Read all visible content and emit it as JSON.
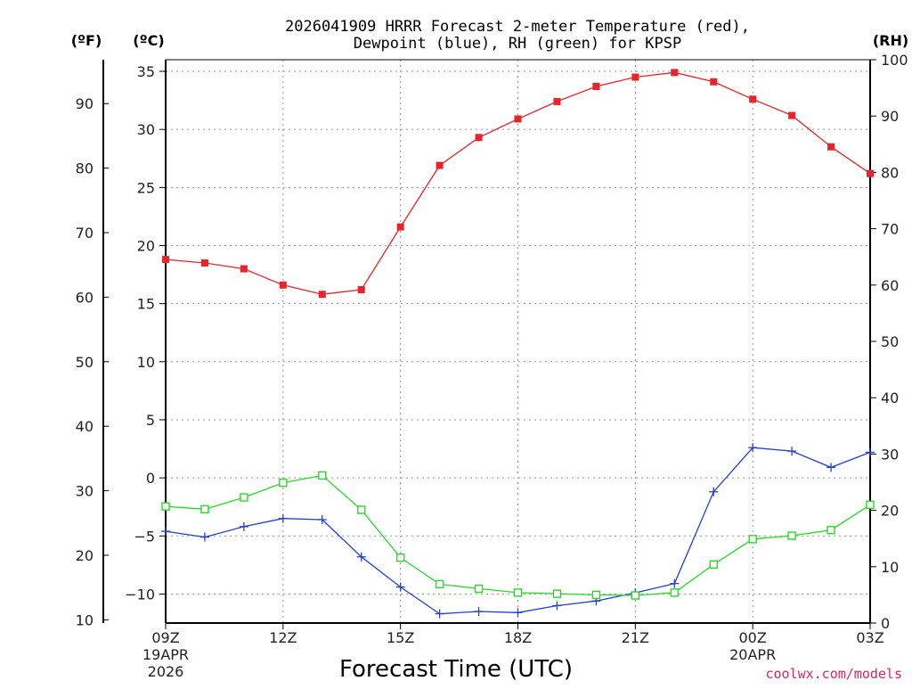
{
  "chart_data": {
    "type": "line",
    "title_line1": "2026041909 HRRR Forecast 2-meter Temperature (red),",
    "title_line2": "Dewpoint (blue), RH (green) for KPSP",
    "xlabel": "Forecast Time (UTC)",
    "credit": "coolwx.com/models",
    "unit_labels": {
      "fahrenheit": "(ºF)",
      "celsius": "(ºC)",
      "rh": "(RH)"
    },
    "x_hours": [
      0,
      1,
      2,
      3,
      4,
      5,
      6,
      7,
      8,
      9,
      10,
      11,
      12,
      13,
      14,
      15,
      16,
      17,
      18
    ],
    "x_ticks": [
      {
        "hour": 0,
        "label": "09Z",
        "line2": "19APR",
        "line3": "2026"
      },
      {
        "hour": 3,
        "label": "12Z",
        "line2": "",
        "line3": ""
      },
      {
        "hour": 6,
        "label": "15Z",
        "line2": "",
        "line3": ""
      },
      {
        "hour": 9,
        "label": "18Z",
        "line2": "",
        "line3": ""
      },
      {
        "hour": 12,
        "label": "21Z",
        "line2": "",
        "line3": ""
      },
      {
        "hour": 15,
        "label": "00Z",
        "line2": "20APR",
        "line3": ""
      },
      {
        "hour": 18,
        "label": "03Z",
        "line2": "",
        "line3": ""
      }
    ],
    "celsius_axis": {
      "min": -12.5,
      "max": 36,
      "ticks": [
        "35",
        "30",
        "25",
        "20",
        "15",
        "10",
        "5",
        "0",
        "−5",
        "−10"
      ],
      "tick_values": [
        35,
        30,
        25,
        20,
        15,
        10,
        5,
        0,
        -5,
        -10
      ]
    },
    "fahrenheit_axis": {
      "ticks": [
        "90",
        "80",
        "70",
        "60",
        "50",
        "40",
        "30",
        "20",
        "10"
      ],
      "tick_values": [
        90,
        80,
        70,
        60,
        50,
        40,
        30,
        20,
        10
      ]
    },
    "rh_axis": {
      "min": 0,
      "max": 100,
      "ticks": [
        "100",
        "90",
        "80",
        "70",
        "60",
        "50",
        "40",
        "30",
        "20",
        "10",
        "0"
      ],
      "tick_values": [
        100,
        90,
        80,
        70,
        60,
        50,
        40,
        30,
        20,
        10,
        0
      ]
    },
    "series": [
      {
        "name": "Temperature",
        "units": "C",
        "color": "#e8242b",
        "marker": "square-filled",
        "values": [
          18.8,
          18.5,
          18.0,
          16.6,
          15.8,
          16.2,
          21.6,
          26.9,
          29.3,
          30.9,
          32.4,
          33.7,
          34.5,
          34.9,
          34.1,
          32.6,
          31.2,
          28.5,
          26.2
        ]
      },
      {
        "name": "Dewpoint",
        "units": "C",
        "color": "#1f3de0",
        "marker": "plus",
        "values": [
          -4.6,
          -5.1,
          -4.2,
          -3.5,
          -3.6,
          -6.8,
          -9.4,
          -11.7,
          -11.5,
          -11.6,
          -11.0,
          -10.6,
          -9.9,
          -9.1,
          -1.2,
          2.6,
          2.3,
          0.9,
          2.2
        ]
      },
      {
        "name": "RH",
        "units": "%",
        "color": "#22dd22",
        "marker": "square-open",
        "values": [
          20.7,
          20.2,
          22.3,
          24.9,
          26.2,
          20.1,
          11.6,
          6.9,
          6.1,
          5.4,
          5.2,
          5.0,
          4.9,
          5.4,
          10.4,
          14.9,
          15.5,
          16.5,
          21.0
        ]
      }
    ]
  }
}
